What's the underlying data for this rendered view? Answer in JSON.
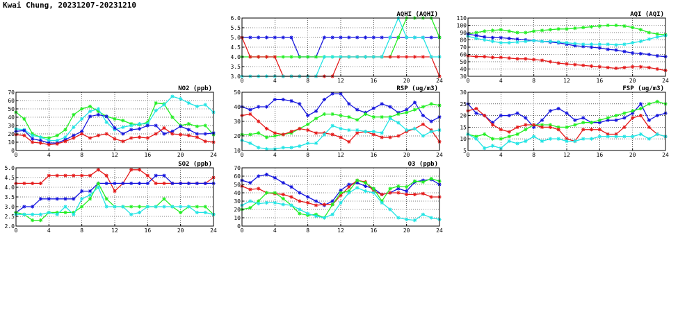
{
  "page": {
    "title": "Kwai Chung, 20231207-20231210"
  },
  "colors": {
    "blue": "#1515dd",
    "green": "#22ee22",
    "red": "#e41a1a",
    "cyan": "#22e4e4"
  },
  "chart_data": [
    {
      "id": "aqhi",
      "type": "line",
      "title": "AQHI (AQHI)",
      "xlim": [
        0,
        24
      ],
      "xticks": [
        0,
        4,
        8,
        12,
        16,
        20,
        24
      ],
      "ylim": [
        3.0,
        6.0
      ],
      "yticks": [
        "3.0",
        "3.5",
        "4.0",
        "4.5",
        "5.0",
        "5.5",
        "6.0"
      ],
      "grid": true,
      "series": [
        {
          "color": "blue",
          "values": [
            5,
            5,
            5,
            5,
            5,
            5,
            5,
            4,
            4,
            4,
            5,
            5,
            5,
            5,
            5,
            5,
            5,
            5,
            5,
            5,
            5,
            5,
            5,
            5,
            5
          ]
        },
        {
          "color": "green",
          "values": [
            4,
            4,
            4,
            4,
            4,
            4,
            4,
            4,
            4,
            4,
            4,
            4,
            4,
            4,
            4,
            4,
            4,
            4,
            4,
            5,
            6,
            6,
            6,
            6,
            5
          ]
        },
        {
          "color": "red",
          "values": [
            5,
            4,
            4,
            4,
            4,
            3,
            3,
            3,
            3,
            3,
            3,
            3,
            4,
            4,
            4,
            4,
            4,
            4,
            4,
            4,
            4,
            4,
            4,
            4,
            3
          ]
        },
        {
          "color": "cyan",
          "values": [
            3,
            3,
            3,
            3,
            3,
            3,
            3,
            3,
            3,
            3,
            4,
            4,
            4,
            4,
            4,
            4,
            4,
            4,
            5,
            6,
            5,
            5,
            5,
            4,
            4
          ]
        }
      ]
    },
    {
      "id": "aqi",
      "type": "line",
      "title": "AQI (AQI)",
      "xlim": [
        0,
        24
      ],
      "xticks": [
        0,
        4,
        8,
        12,
        16,
        20,
        24
      ],
      "ylim": [
        30,
        110
      ],
      "yticks": [
        "30",
        "40",
        "50",
        "60",
        "70",
        "80",
        "90",
        "100",
        "110"
      ],
      "grid": true,
      "series": [
        {
          "color": "green",
          "values": [
            88,
            90,
            92,
            93,
            94,
            92,
            90,
            90,
            92,
            93,
            94,
            95,
            95,
            96,
            97,
            98,
            99,
            100,
            100,
            99,
            97,
            94,
            90,
            88,
            87
          ]
        },
        {
          "color": "blue",
          "values": [
            88,
            86,
            84,
            83,
            83,
            82,
            81,
            80,
            79,
            78,
            77,
            76,
            74,
            72,
            71,
            70,
            69,
            67,
            66,
            64,
            62,
            61,
            60,
            58,
            57
          ]
        },
        {
          "color": "cyan",
          "values": [
            85,
            82,
            80,
            78,
            76,
            76,
            77,
            78,
            79,
            78,
            78,
            77,
            76,
            75,
            74,
            74,
            74,
            74,
            73,
            74,
            76,
            78,
            81,
            84,
            86
          ]
        },
        {
          "color": "red",
          "values": [
            58,
            57,
            57,
            56,
            56,
            55,
            54,
            54,
            53,
            52,
            50,
            48,
            47,
            46,
            45,
            44,
            43,
            42,
            41,
            42,
            43,
            43,
            42,
            40,
            38
          ]
        }
      ]
    },
    {
      "id": "no2",
      "type": "line",
      "title": "NO2 (ppb)",
      "xlim": [
        0,
        24
      ],
      "xticks": [
        0,
        4,
        8,
        12,
        16,
        20,
        24
      ],
      "ylim": [
        0,
        70
      ],
      "yticks": [
        "0",
        "10",
        "20",
        "30",
        "40",
        "50",
        "60",
        "70"
      ],
      "grid": true,
      "series": [
        {
          "color": "green",
          "values": [
            46,
            38,
            20,
            16,
            15,
            18,
            25,
            43,
            50,
            53,
            47,
            41,
            38,
            36,
            32,
            31,
            34,
            57,
            56,
            40,
            30,
            32,
            29,
            30,
            19
          ]
        },
        {
          "color": "cyan",
          "values": [
            26,
            25,
            18,
            16,
            12,
            12,
            16,
            28,
            38,
            47,
            50,
            34,
            25,
            28,
            30,
            32,
            32,
            48,
            55,
            65,
            62,
            57,
            53,
            55,
            46
          ]
        },
        {
          "color": "blue",
          "values": [
            23,
            24,
            14,
            12,
            9,
            9,
            13,
            18,
            23,
            41,
            43,
            41,
            27,
            20,
            25,
            26,
            30,
            30,
            20,
            23,
            29,
            25,
            20,
            20,
            21
          ]
        },
        {
          "color": "red",
          "values": [
            19,
            18,
            10,
            9,
            7,
            8,
            11,
            15,
            20,
            15,
            18,
            20,
            14,
            11,
            15,
            16,
            15,
            20,
            27,
            20,
            19,
            18,
            16,
            11,
            10
          ]
        }
      ]
    },
    {
      "id": "rsp",
      "type": "line",
      "title": "RSP (ug/m3)",
      "xlim": [
        0,
        24
      ],
      "xticks": [
        0,
        4,
        8,
        12,
        16,
        20,
        24
      ],
      "ylim": [
        10,
        50
      ],
      "yticks": [
        "10",
        "20",
        "30",
        "40",
        "50"
      ],
      "grid": true,
      "series": [
        {
          "color": "blue",
          "values": [
            40,
            38,
            40,
            40,
            45,
            45,
            44,
            42,
            34,
            37,
            45,
            49,
            49,
            42,
            38,
            36,
            39,
            42,
            40,
            36,
            38,
            43,
            34,
            30,
            33
          ]
        },
        {
          "color": "green",
          "values": [
            21,
            21,
            22,
            19,
            20,
            21,
            22,
            25,
            28,
            32,
            35,
            35,
            34,
            33,
            31,
            35,
            33,
            33,
            33,
            35,
            36,
            38,
            40,
            42,
            41
          ]
        },
        {
          "color": "red",
          "values": [
            34,
            35,
            30,
            25,
            22,
            21,
            23,
            25,
            24,
            22,
            22,
            21,
            19,
            16,
            22,
            23,
            21,
            19,
            19,
            20,
            23,
            25,
            28,
            24,
            16
          ]
        },
        {
          "color": "cyan",
          "values": [
            17,
            15,
            12,
            11,
            11,
            12,
            12,
            13,
            15,
            15,
            21,
            27,
            25,
            24,
            24,
            23,
            23,
            22,
            32,
            29,
            24,
            25,
            20,
            23,
            24
          ]
        }
      ]
    },
    {
      "id": "fsp",
      "type": "line",
      "title": "FSP (ug/m3)",
      "xlim": [
        0,
        24
      ],
      "xticks": [
        0,
        4,
        8,
        12,
        16,
        20,
        24
      ],
      "ylim": [
        5,
        30
      ],
      "yticks": [
        "5",
        "10",
        "15",
        "20",
        "25",
        "30"
      ],
      "grid": true,
      "series": [
        {
          "color": "blue",
          "values": [
            25,
            21,
            20,
            17,
            20,
            20,
            21,
            19,
            15,
            18,
            22,
            23,
            21,
            18,
            19,
            17,
            17,
            18,
            18,
            19,
            21,
            25,
            18,
            20,
            21
          ]
        },
        {
          "color": "green",
          "values": [
            12,
            11,
            12,
            10,
            10,
            11,
            12,
            14,
            16,
            16,
            16,
            15,
            15,
            16,
            17,
            17,
            18,
            19,
            20,
            21,
            22,
            23,
            25,
            26,
            25
          ]
        },
        {
          "color": "red",
          "values": [
            22,
            23,
            20,
            16,
            14,
            13,
            15,
            16,
            16,
            15,
            15,
            14,
            10,
            9,
            14,
            14,
            14,
            12,
            12,
            15,
            19,
            20,
            15,
            12,
            11
          ]
        },
        {
          "color": "cyan",
          "values": [
            12,
            10,
            6,
            7,
            6,
            9,
            8,
            9,
            11,
            9,
            10,
            10,
            9,
            9,
            10,
            10,
            11,
            11,
            11,
            11,
            11,
            12,
            10,
            12,
            11
          ]
        }
      ]
    },
    {
      "id": "so2",
      "type": "line",
      "title": "SO2 (ppb)",
      "xlim": [
        0,
        24
      ],
      "xticks": [
        0,
        4,
        8,
        12,
        16,
        20,
        24
      ],
      "ylim": [
        2.0,
        5.0
      ],
      "yticks": [
        "2.0",
        "2.5",
        "3.0",
        "3.5",
        "4.0",
        "4.5",
        "5.0"
      ],
      "grid": true,
      "series": [
        {
          "color": "red",
          "values": [
            4.2,
            4.2,
            4.2,
            4.2,
            4.6,
            4.6,
            4.6,
            4.6,
            4.6,
            4.6,
            4.9,
            4.6,
            3.8,
            4.2,
            4.9,
            4.9,
            4.6,
            4.2,
            4.2,
            4.2,
            4.2,
            4.2,
            4.2,
            4.2,
            4.5
          ]
        },
        {
          "color": "blue",
          "values": [
            2.7,
            3.0,
            3.0,
            3.4,
            3.4,
            3.4,
            3.4,
            3.4,
            3.8,
            3.8,
            4.2,
            4.2,
            4.2,
            4.2,
            4.2,
            4.2,
            4.2,
            4.6,
            4.6,
            4.2,
            4.2,
            4.2,
            4.2,
            4.2,
            4.2
          ]
        },
        {
          "color": "green",
          "values": [
            2.7,
            2.6,
            2.3,
            2.3,
            2.7,
            2.7,
            2.7,
            2.7,
            3.0,
            3.4,
            4.2,
            3.4,
            3.0,
            3.0,
            3.0,
            3.0,
            3.0,
            3.0,
            3.4,
            3.0,
            2.7,
            3.0,
            3.0,
            3.0,
            2.6
          ]
        },
        {
          "color": "cyan",
          "values": [
            2.6,
            2.6,
            2.6,
            2.6,
            2.7,
            2.6,
            3.0,
            2.6,
            3.4,
            3.6,
            4.0,
            3.0,
            3.0,
            3.0,
            2.6,
            2.7,
            3.0,
            3.0,
            3.0,
            3.0,
            3.0,
            3.0,
            2.7,
            2.7,
            2.6
          ]
        }
      ]
    },
    {
      "id": "o3",
      "type": "line",
      "title": "O3 (ppb)",
      "xlim": [
        0,
        24
      ],
      "xticks": [
        0,
        4,
        8,
        12,
        16,
        20,
        24
      ],
      "ylim": [
        0,
        70
      ],
      "yticks": [
        "0",
        "10",
        "20",
        "30",
        "40",
        "50",
        "60",
        "70"
      ],
      "grid": true,
      "series": [
        {
          "color": "blue",
          "values": [
            55,
            52,
            60,
            62,
            58,
            52,
            47,
            40,
            35,
            30,
            25,
            30,
            43,
            50,
            52,
            48,
            45,
            38,
            40,
            45,
            42,
            53,
            55,
            56,
            50
          ]
        },
        {
          "color": "red",
          "values": [
            48,
            44,
            45,
            40,
            39,
            38,
            35,
            30,
            28,
            25,
            26,
            26,
            37,
            47,
            55,
            53,
            42,
            38,
            40,
            40,
            38,
            38,
            39,
            35,
            35
          ]
        },
        {
          "color": "green",
          "values": [
            20,
            22,
            30,
            40,
            40,
            33,
            25,
            15,
            13,
            14,
            10,
            26,
            40,
            42,
            55,
            52,
            45,
            30,
            45,
            48,
            47,
            54,
            53,
            57,
            54
          ]
        },
        {
          "color": "cyan",
          "values": [
            25,
            30,
            27,
            28,
            28,
            26,
            25,
            20,
            15,
            12,
            10,
            14,
            28,
            40,
            46,
            42,
            40,
            28,
            20,
            10,
            8,
            7,
            14,
            10,
            8
          ]
        }
      ]
    }
  ]
}
